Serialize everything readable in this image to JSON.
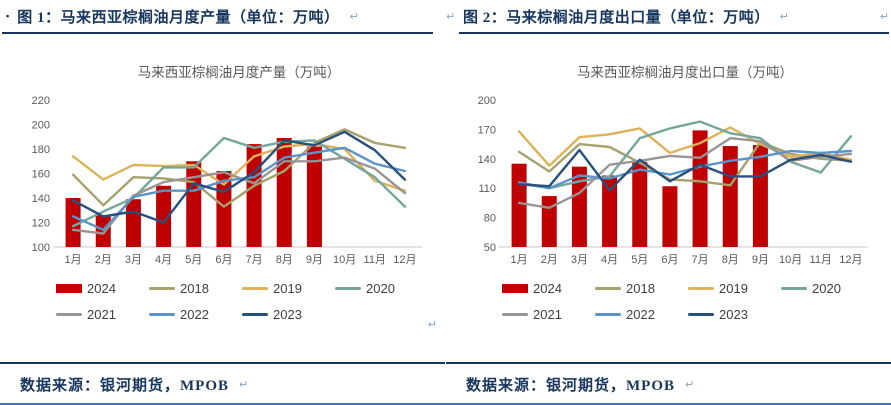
{
  "marks": {
    "pilcrow": "↵",
    "bullet": "▪"
  },
  "colors": {
    "header_text": "#17365D",
    "header_rule": "#17365D",
    "page_bottom_rule": "#4472C4",
    "axis_line": "#C9C9C9",
    "chart_text": "#595959"
  },
  "left_panel": {
    "header_title": "图 1：马来西亚棕榈油月度产量（单位：万吨）",
    "source_text": "数据来源：银河期货，MPOB"
  },
  "right_panel": {
    "header_title": "图 2：马来棕榈油月度出口量（单位：万吨）",
    "source_text": "数据来源：银河期货，MPOB"
  },
  "chart_data": [
    {
      "type": "bar+line",
      "title": "马来西亚棕榈油月度产量（万吨）",
      "xlabel": "",
      "ylabel": "",
      "ylim": [
        100,
        220
      ],
      "yticks": [
        100,
        120,
        140,
        160,
        180,
        200,
        220
      ],
      "grid": false,
      "legend_position": "bottom",
      "text_color": "#595959",
      "categories": [
        "1月",
        "2月",
        "3月",
        "4月",
        "5月",
        "6月",
        "7月",
        "8月",
        "9月",
        "10月",
        "11月",
        "12月"
      ],
      "bars": {
        "name": "2024",
        "color": "#C00000",
        "values": [
          140,
          126,
          139,
          150,
          170,
          162,
          184,
          189,
          182
        ]
      },
      "series": [
        {
          "name": "2018",
          "color": "#A5A26C",
          "values": [
            159,
            134,
            157,
            156,
            153,
            133,
            150,
            162,
            185,
            196,
            185,
            181
          ]
        },
        {
          "name": "2019",
          "color": "#DFB25A",
          "values": [
            174,
            155,
            167,
            166,
            167,
            151,
            174,
            182,
            184,
            180,
            154,
            146
          ]
        },
        {
          "name": "2020",
          "color": "#74A79A",
          "values": [
            117,
            129,
            140,
            165,
            165,
            189,
            181,
            186,
            187,
            172,
            157,
            133
          ]
        },
        {
          "name": "2021",
          "color": "#9A9495",
          "values": [
            114,
            111,
            142,
            153,
            157,
            161,
            152,
            170,
            170,
            173,
            164,
            144
          ]
        },
        {
          "name": "2022",
          "color": "#5B94C8",
          "values": [
            125,
            114,
            141,
            146,
            146,
            154,
            157,
            173,
            177,
            181,
            168,
            162
          ]
        },
        {
          "name": "2023",
          "color": "#27517C",
          "values": [
            138,
            125,
            129,
            120,
            152,
            145,
            161,
            187,
            183,
            194,
            179,
            155
          ]
        }
      ]
    },
    {
      "type": "bar+line",
      "title": "马来西亚棕榈油月度出口量（万吨）",
      "xlabel": "",
      "ylabel": "",
      "ylim": [
        50,
        200
      ],
      "yticks": [
        50,
        80,
        110,
        140,
        170,
        200
      ],
      "grid": false,
      "legend_position": "bottom",
      "text_color": "#595959",
      "categories": [
        "1月",
        "2月",
        "3月",
        "4月",
        "5月",
        "6月",
        "7月",
        "8月",
        "9月",
        "10月",
        "11月",
        "12月"
      ],
      "bars": {
        "name": "2024",
        "color": "#C00000",
        "values": [
          135,
          102,
          132,
          123,
          137,
          112,
          169,
          153,
          154
        ]
      },
      "series": [
        {
          "name": "2018",
          "color": "#A5A26C",
          "values": [
            147,
            127,
            155,
            152,
            136,
            119,
            117,
            113,
            157,
            145,
            140,
            138
          ]
        },
        {
          "name": "2019",
          "color": "#DFB25A",
          "values": [
            168,
            133,
            162,
            165,
            171,
            146,
            156,
            172,
            155,
            142,
            146,
            139
          ]
        },
        {
          "name": "2020",
          "color": "#74A79A",
          "values": [
            115,
            110,
            117,
            122,
            161,
            171,
            178,
            166,
            161,
            137,
            126,
            163
          ]
        },
        {
          "name": "2021",
          "color": "#9A9495",
          "values": [
            95,
            90,
            105,
            134,
            138,
            143,
            141,
            161,
            158,
            138,
            142,
            145
          ]
        },
        {
          "name": "2022",
          "color": "#5B94C8",
          "values": [
            116,
            110,
            123,
            120,
            129,
            124,
            132,
            138,
            142,
            148,
            146,
            148
          ]
        },
        {
          "name": "2023",
          "color": "#27517C",
          "values": [
            114,
            112,
            149,
            108,
            139,
            117,
            134,
            122,
            122,
            139,
            144,
            137
          ]
        }
      ]
    }
  ]
}
